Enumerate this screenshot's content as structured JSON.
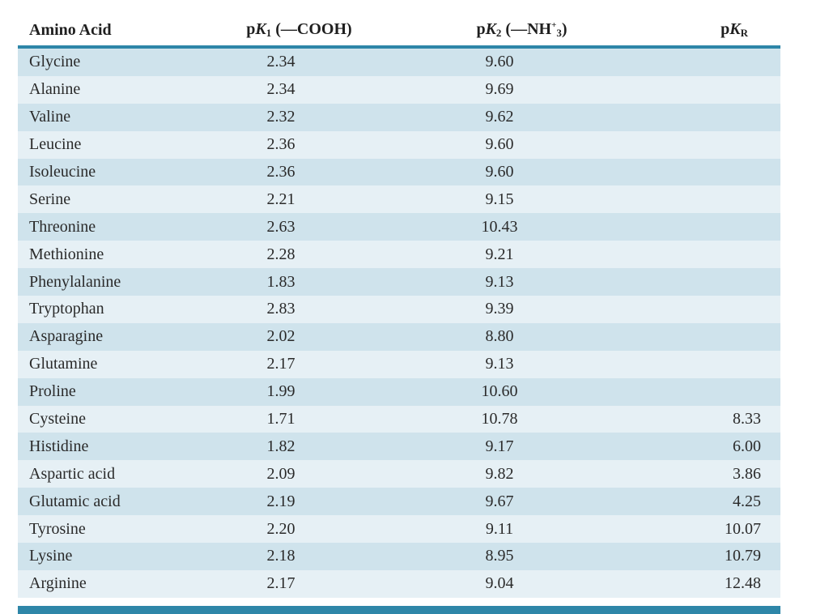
{
  "table": {
    "headers": {
      "amino_acid": "Amino Acid",
      "pk1_prefix": "p",
      "pk1_K": "K",
      "pk1_sub": "1",
      "pk1_suffix": " (—COOH)",
      "pk2_prefix": "p",
      "pk2_K": "K",
      "pk2_sub": "2",
      "pk2_mid": " (—NH",
      "pk2_sub3": "3",
      "pk2_sup": "+",
      "pk2_suffix": ")",
      "pkr_prefix": "p",
      "pkr_K": "K",
      "pkr_sub": "R"
    },
    "rows": [
      {
        "name": "Glycine",
        "pk1": "2.34",
        "pk2": "9.60",
        "pkr": ""
      },
      {
        "name": "Alanine",
        "pk1": "2.34",
        "pk2": "9.69",
        "pkr": ""
      },
      {
        "name": "Valine",
        "pk1": "2.32",
        "pk2": "9.62",
        "pkr": ""
      },
      {
        "name": "Leucine",
        "pk1": "2.36",
        "pk2": "9.60",
        "pkr": ""
      },
      {
        "name": "Isoleucine",
        "pk1": "2.36",
        "pk2": "9.60",
        "pkr": ""
      },
      {
        "name": "Serine",
        "pk1": "2.21",
        "pk2": "9.15",
        "pkr": ""
      },
      {
        "name": "Threonine",
        "pk1": "2.63",
        "pk2": "10.43",
        "pkr": ""
      },
      {
        "name": "Methionine",
        "pk1": "2.28",
        "pk2": "9.21",
        "pkr": ""
      },
      {
        "name": "Phenylalanine",
        "pk1": "1.83",
        "pk2": "9.13",
        "pkr": ""
      },
      {
        "name": "Tryptophan",
        "pk1": "2.83",
        "pk2": "9.39",
        "pkr": ""
      },
      {
        "name": "Asparagine",
        "pk1": "2.02",
        "pk2": "8.80",
        "pkr": ""
      },
      {
        "name": "Glutamine",
        "pk1": "2.17",
        "pk2": "9.13",
        "pkr": ""
      },
      {
        "name": "Proline",
        "pk1": "1.99",
        "pk2": "10.60",
        "pkr": ""
      },
      {
        "name": "Cysteine",
        "pk1": "1.71",
        "pk2": "10.78",
        "pkr": "8.33"
      },
      {
        "name": "Histidine",
        "pk1": "1.82",
        "pk2": "9.17",
        "pkr": "6.00"
      },
      {
        "name": "Aspartic acid",
        "pk1": "2.09",
        "pk2": "9.82",
        "pkr": "3.86"
      },
      {
        "name": "Glutamic acid",
        "pk1": "2.19",
        "pk2": "9.67",
        "pkr": "4.25"
      },
      {
        "name": "Tyrosine",
        "pk1": "2.20",
        "pk2": "9.11",
        "pkr": "10.07"
      },
      {
        "name": "Lysine",
        "pk1": "2.18",
        "pk2": "8.95",
        "pkr": "10.79"
      },
      {
        "name": "Arginine",
        "pk1": "2.17",
        "pk2": "9.04",
        "pkr": "12.48"
      }
    ]
  },
  "colors": {
    "rule": "#2e86a8",
    "row_dark": "#cfe3ec",
    "row_light": "#e6f0f5"
  }
}
